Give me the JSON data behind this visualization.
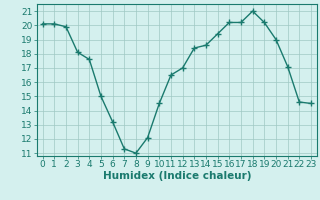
{
  "x": [
    0,
    1,
    2,
    3,
    4,
    5,
    6,
    7,
    8,
    9,
    10,
    11,
    12,
    13,
    14,
    15,
    16,
    17,
    18,
    19,
    20,
    21,
    22,
    23
  ],
  "y": [
    20.1,
    20.1,
    19.9,
    18.1,
    17.6,
    15.0,
    13.2,
    11.3,
    11.0,
    12.1,
    14.5,
    16.5,
    17.0,
    18.4,
    18.6,
    19.4,
    20.2,
    20.2,
    21.0,
    20.2,
    19.0,
    17.1,
    14.6,
    14.5
  ],
  "line_color": "#1a7a6e",
  "marker": "+",
  "marker_size": 4,
  "bg_color": "#d4f0ee",
  "grid_color": "#a0c8c4",
  "xlabel": "Humidex (Indice chaleur)",
  "ylim": [
    10.8,
    21.5
  ],
  "xlim": [
    -0.5,
    23.5
  ],
  "yticks": [
    11,
    12,
    13,
    14,
    15,
    16,
    17,
    18,
    19,
    20,
    21
  ],
  "xticks": [
    0,
    1,
    2,
    3,
    4,
    5,
    6,
    7,
    8,
    9,
    10,
    11,
    12,
    13,
    14,
    15,
    16,
    17,
    18,
    19,
    20,
    21,
    22,
    23
  ],
  "font_size": 6.5,
  "label_fontsize": 7.5,
  "lw": 1.0
}
